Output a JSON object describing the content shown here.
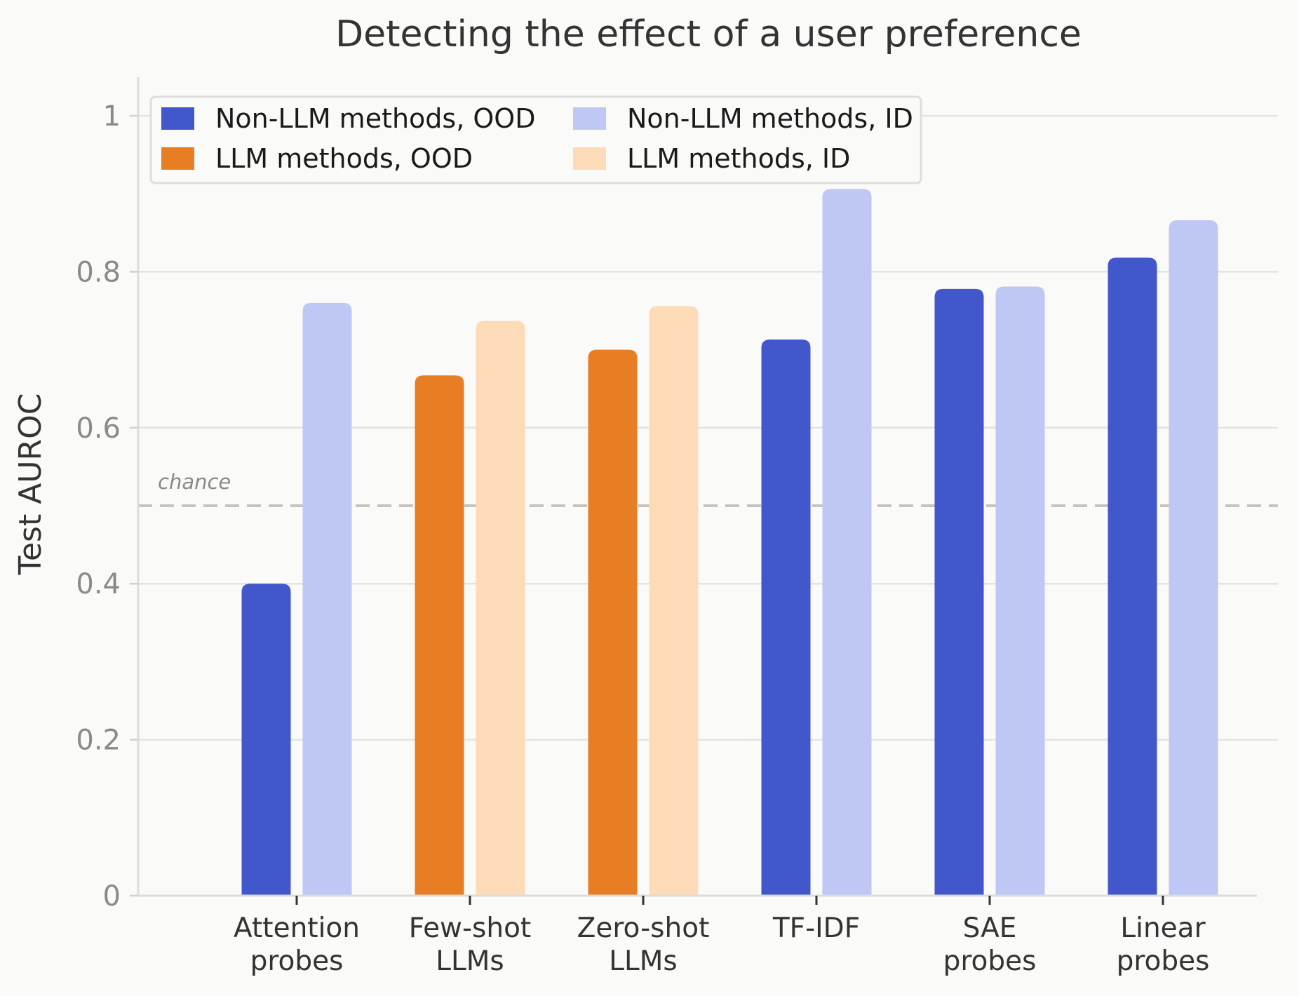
{
  "chart_data": {
    "type": "bar",
    "title": "Detecting the effect of a user preference",
    "xlabel": "",
    "ylabel": "Test AUROC",
    "ylim": [
      0,
      1.05
    ],
    "yticks": [
      {
        "value": 0,
        "label": "0"
      },
      {
        "value": 0.2,
        "label": "0.2"
      },
      {
        "value": 0.4,
        "label": "0.4"
      },
      {
        "value": 0.6,
        "label": "0.6"
      },
      {
        "value": 0.8,
        "label": "0.8"
      },
      {
        "value": 1,
        "label": "1"
      }
    ],
    "grid": true,
    "reference_line": {
      "value": 0.5,
      "label": "chance",
      "color": "#c8c4bc"
    },
    "legend_position": "top-left",
    "legend": [
      {
        "label": "Non-LLM methods, OOD",
        "color": "#4257cc"
      },
      {
        "label": "Non-LLM methods, ID",
        "color": "#bfc7f4"
      },
      {
        "label": "LLM methods, OOD",
        "color": "#e87e24"
      },
      {
        "label": "LLM methods, ID",
        "color": "#fddbb9"
      }
    ],
    "categories": [
      {
        "id": "attention-probes",
        "lines": [
          "Attention",
          "probes"
        ],
        "kind": "non-llm",
        "ood": 0.4,
        "id_value": 0.76
      },
      {
        "id": "few-shot-llms",
        "lines": [
          "Few-shot",
          "LLMs"
        ],
        "kind": "llm",
        "ood": 0.667,
        "id_value": 0.737
      },
      {
        "id": "zero-shot-llms",
        "lines": [
          "Zero-shot",
          "LLMs"
        ],
        "kind": "llm",
        "ood": 0.7,
        "id_value": 0.756
      },
      {
        "id": "tf-idf",
        "lines": [
          "TF-IDF"
        ],
        "kind": "non-llm",
        "ood": 0.713,
        "id_value": 0.906
      },
      {
        "id": "sae-probes",
        "lines": [
          "SAE",
          "probes"
        ],
        "kind": "non-llm",
        "ood": 0.778,
        "id_value": 0.781
      },
      {
        "id": "linear-probes",
        "lines": [
          "Linear",
          "probes"
        ],
        "kind": "non-llm",
        "ood": 0.818,
        "id_value": 0.866
      }
    ],
    "colors": {
      "non-llm": {
        "ood": "#4257cc",
        "id": "#bfc7f4"
      },
      "llm": {
        "ood": "#e87e24",
        "id": "#fddbb9"
      }
    }
  }
}
